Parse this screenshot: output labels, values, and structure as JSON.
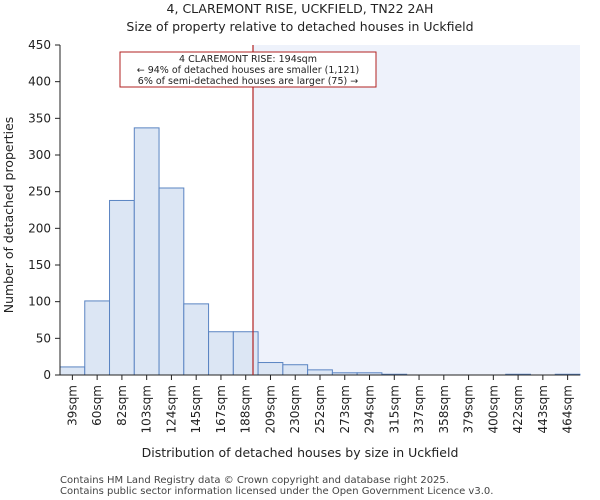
{
  "chart_data": {
    "type": "bar",
    "title": "4, CLAREMONT RISE, UCKFIELD, TN22 2AH",
    "subtitle": "Size of property relative to detached houses in Uckfield",
    "xlabel": "Distribution of detached houses by size in Uckfield",
    "ylabel": "Number of detached properties",
    "ylim": [
      0,
      450
    ],
    "yticks": [
      0,
      50,
      100,
      150,
      200,
      250,
      300,
      350,
      400,
      450
    ],
    "categories": [
      "39sqm",
      "60sqm",
      "82sqm",
      "103sqm",
      "124sqm",
      "145sqm",
      "167sqm",
      "188sqm",
      "209sqm",
      "230sqm",
      "252sqm",
      "273sqm",
      "294sqm",
      "315sqm",
      "337sqm",
      "358sqm",
      "379sqm",
      "400sqm",
      "422sqm",
      "443sqm",
      "464sqm"
    ],
    "values": [
      11,
      101,
      238,
      337,
      255,
      97,
      59,
      59,
      17,
      14,
      7,
      3,
      3,
      1,
      0,
      0,
      0,
      0,
      1,
      0,
      1
    ],
    "marker": {
      "value_sqm": 194,
      "color": "#b22222",
      "lines": [
        "4 CLAREMONT RISE: 194sqm",
        "← 94% of detached houses are smaller (1,121)",
        "6% of semi-detached houses are larger (75) →"
      ]
    },
    "colors": {
      "bar_fill": "#dce6f4",
      "bar_stroke": "#5a84c2",
      "shade": "#eef2fb"
    }
  },
  "footer": {
    "line1": "Contains HM Land Registry data © Crown copyright and database right 2025.",
    "line2": "Contains public sector information licensed under the Open Government Licence v3.0."
  }
}
